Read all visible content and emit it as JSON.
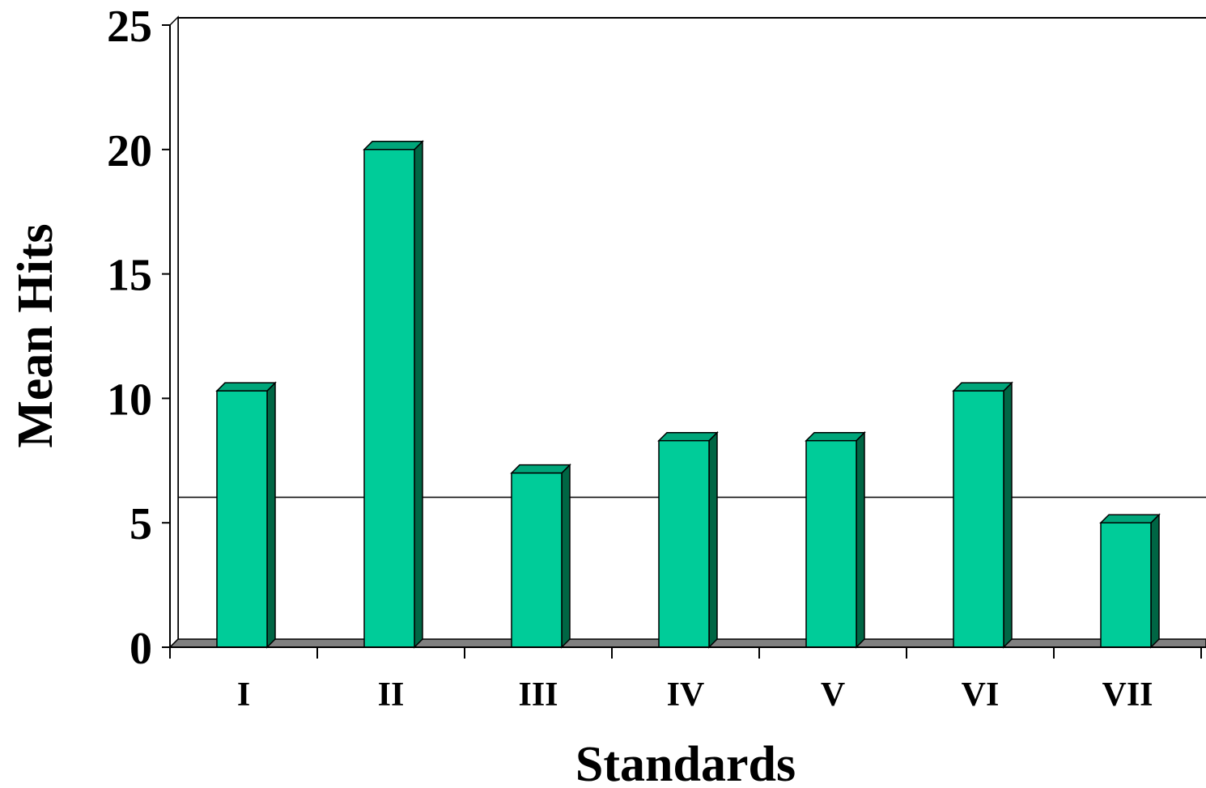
{
  "chart_data": {
    "type": "bar",
    "title": "",
    "xlabel": "Standards",
    "ylabel": "Mean Hits",
    "categories": [
      "I",
      "II",
      "III",
      "IV",
      "V",
      "VI",
      "VII"
    ],
    "values": [
      10.3,
      20.0,
      7.0,
      8.3,
      8.3,
      10.3,
      5.0
    ],
    "ylim": [
      0,
      25
    ],
    "yticks": [
      "0",
      "5",
      "10",
      "15",
      "20",
      "25"
    ],
    "reference_line": 5.7,
    "grid": false,
    "legend": "none",
    "style": "3d-column",
    "colors": {
      "bar_front": "#00CC99",
      "bar_top": "#00A67A",
      "bar_side": "#006644",
      "floor": "#808080",
      "axis": "#000000",
      "reference_line": "#000000"
    }
  }
}
